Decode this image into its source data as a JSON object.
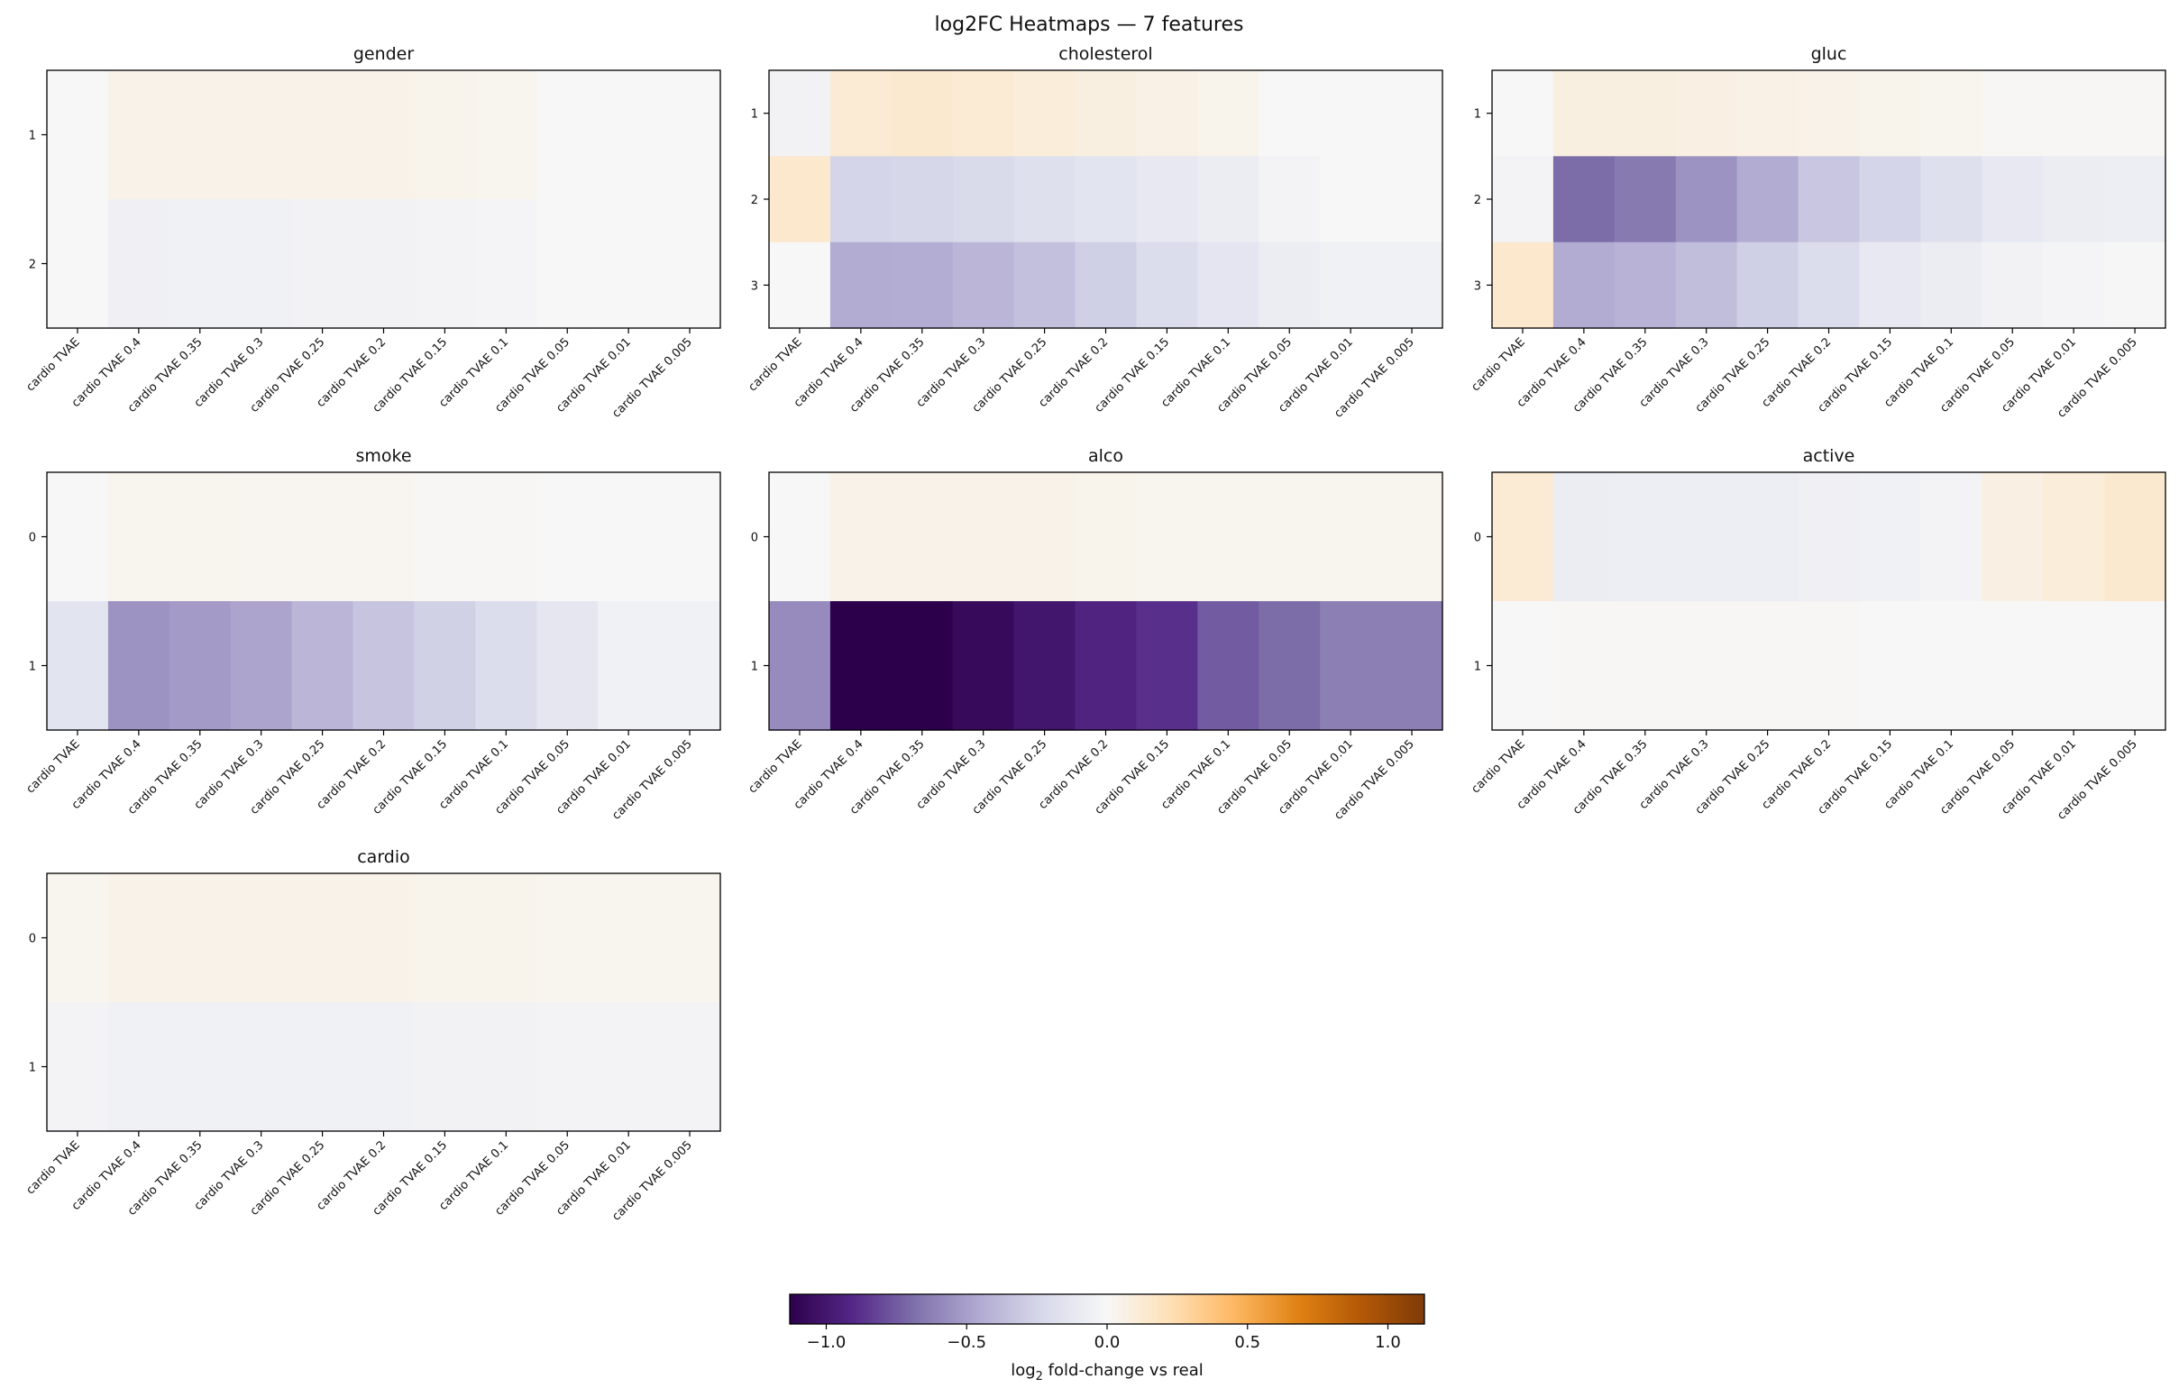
{
  "chart_data": {
    "type": "heatmap",
    "title": "log2FC Heatmaps — 7 features",
    "columns": [
      "cardio TVAE",
      "cardio TVAE 0.4",
      "cardio TVAE 0.35",
      "cardio TVAE 0.3",
      "cardio TVAE 0.25",
      "cardio TVAE 0.2",
      "cardio TVAE 0.15",
      "cardio TVAE 0.1",
      "cardio TVAE 0.05",
      "cardio TVAE 0.01",
      "cardio TVAE 0.005"
    ],
    "colormap": "PuOr_r",
    "colorbar": {
      "vmin": -1.13,
      "vmax": 1.13,
      "ticks": [
        -1.0,
        -0.5,
        0.0,
        0.5,
        1.0
      ],
      "tick_labels": [
        "−1.0",
        "−0.5",
        "0.0",
        "0.5",
        "1.0"
      ],
      "label_prefix": "log",
      "label_sub": "2",
      "label_suffix": " fold-change vs real"
    },
    "panels": [
      {
        "title": "gender",
        "rows": [
          "1",
          "2"
        ],
        "values": [
          [
            0.0,
            0.05,
            0.05,
            0.05,
            0.05,
            0.05,
            0.04,
            0.03,
            0.0,
            0.0,
            0.0
          ],
          [
            0.0,
            -0.06,
            -0.05,
            -0.05,
            -0.04,
            -0.04,
            -0.03,
            -0.02,
            0.0,
            0.0,
            0.0
          ]
        ]
      },
      {
        "title": "cholesterol",
        "rows": [
          "1",
          "2",
          "3"
        ],
        "values": [
          [
            -0.04,
            0.12,
            0.14,
            0.12,
            0.1,
            0.08,
            0.06,
            0.04,
            0.0,
            0.0,
            0.0
          ],
          [
            0.15,
            -0.25,
            -0.24,
            -0.22,
            -0.18,
            -0.15,
            -0.12,
            -0.08,
            -0.03,
            0.0,
            0.0
          ],
          [
            0.0,
            -0.45,
            -0.44,
            -0.4,
            -0.35,
            -0.28,
            -0.2,
            -0.14,
            -0.08,
            -0.05,
            -0.05
          ]
        ]
      },
      {
        "title": "gluc",
        "rows": [
          "1",
          "2",
          "3"
        ],
        "values": [
          [
            0.0,
            0.08,
            0.08,
            0.07,
            0.06,
            0.05,
            0.04,
            0.03,
            0.01,
            0.01,
            0.01
          ],
          [
            -0.03,
            -0.7,
            -0.65,
            -0.55,
            -0.45,
            -0.32,
            -0.25,
            -0.18,
            -0.12,
            -0.08,
            -0.07
          ],
          [
            0.15,
            -0.45,
            -0.42,
            -0.36,
            -0.28,
            -0.2,
            -0.12,
            -0.08,
            -0.04,
            -0.02,
            -0.01
          ]
        ]
      },
      {
        "title": "smoke",
        "rows": [
          "0",
          "1"
        ],
        "values": [
          [
            0.0,
            0.03,
            0.03,
            0.02,
            0.02,
            0.02,
            0.01,
            0.01,
            0.0,
            0.0,
            0.0
          ],
          [
            -0.15,
            -0.55,
            -0.52,
            -0.48,
            -0.4,
            -0.33,
            -0.27,
            -0.2,
            -0.13,
            -0.05,
            -0.05
          ]
        ]
      },
      {
        "title": "alco",
        "rows": [
          "0",
          "1"
        ],
        "values": [
          [
            0.0,
            0.05,
            0.05,
            0.05,
            0.05,
            0.04,
            0.03,
            0.03,
            0.03,
            0.03,
            0.03
          ],
          [
            -0.58,
            -1.13,
            -1.13,
            -1.07,
            -1.0,
            -0.93,
            -0.88,
            -0.75,
            -0.7,
            -0.63,
            -0.63
          ]
        ]
      },
      {
        "title": "active",
        "rows": [
          "0",
          "1"
        ],
        "values": [
          [
            0.12,
            -0.08,
            -0.07,
            -0.07,
            -0.07,
            -0.06,
            -0.05,
            -0.03,
            0.07,
            0.1,
            0.14
          ],
          [
            0.0,
            0.01,
            0.01,
            0.01,
            0.01,
            0.01,
            0.0,
            0.0,
            0.0,
            0.0,
            0.0
          ]
        ]
      },
      {
        "title": "cardio",
        "rows": [
          "0",
          "1"
        ],
        "values": [
          [
            0.03,
            0.05,
            0.05,
            0.05,
            0.05,
            0.05,
            0.04,
            0.04,
            0.03,
            0.03,
            0.03
          ],
          [
            -0.03,
            -0.05,
            -0.05,
            -0.05,
            -0.05,
            -0.05,
            -0.04,
            -0.04,
            -0.03,
            -0.03,
            -0.03
          ]
        ]
      }
    ]
  }
}
